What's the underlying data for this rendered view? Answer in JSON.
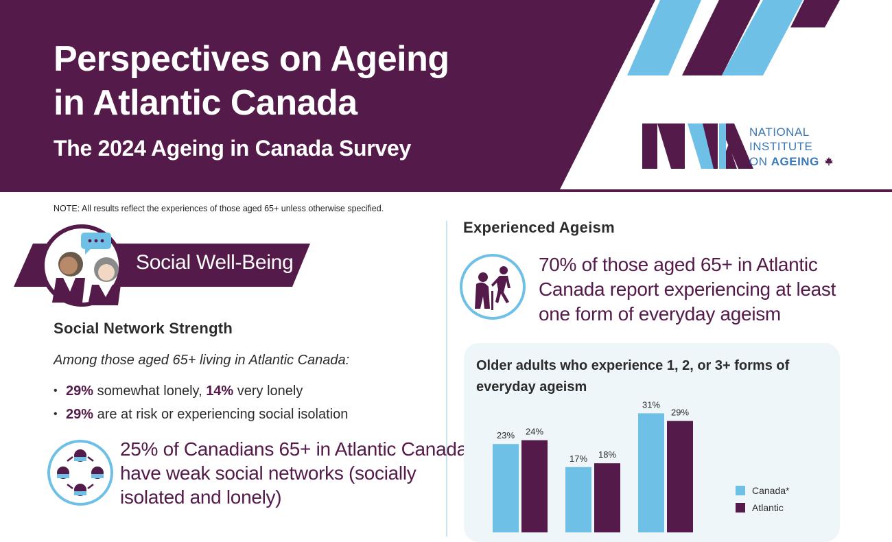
{
  "header": {
    "title_line1": "Perspectives on Ageing",
    "title_line2": "in Atlantic Canada",
    "subtitle": "The 2024 Ageing in Canada Survey",
    "logo_line1": "NATIONAL",
    "logo_line2": "INSTITUTE",
    "logo_line3_prefix": "ON ",
    "logo_line3_bold": "AGEING",
    "logo_icon": "maple-leaf-icon"
  },
  "note": "NOTE: All results reflect the experiences of those aged 65+ unless otherwise specified.",
  "left": {
    "banner_label": "Social Well-Being",
    "banner_icon": "two-people-chat-icon",
    "section_heading": "Social Network Strength",
    "intro": "Among those aged 65+ living in Atlantic Canada:",
    "bullet1": {
      "a_value": "29%",
      "a_text": " somewhat lonely, ",
      "b_value": "14%",
      "b_text": " very lonely"
    },
    "bullet2": {
      "value": "29%",
      "text": " are at risk or experiencing social isolation"
    },
    "callout_line1": "25% of Canadians 65+ in Atlantic Canada",
    "callout_line2": "have weak social networks (socially",
    "callout_line3": "isolated and lonely)",
    "callout_icon": "social-network-cycle-icon"
  },
  "right": {
    "section_heading": "Experienced Ageism",
    "callout_line1": "70% of those aged 65+ in Atlantic",
    "callout_line2": "Canada report experiencing at least",
    "callout_line3": "one form of everyday ageism",
    "callout_icon": "elderly-person-cane-icon"
  },
  "colors": {
    "purple": "#541a4a",
    "light_blue": "#6fc0e6",
    "dark_text": "#2b2b2b",
    "panel_bg": "#eef6fa"
  },
  "chart_data": {
    "type": "bar",
    "title": "Older adults who experience 1, 2, or 3+ forms of everyday ageism",
    "categories": [
      "",
      "",
      ""
    ],
    "series": [
      {
        "name": "Canada*",
        "color": "#6fc0e6",
        "values": [
          23,
          17,
          31
        ],
        "labels": [
          "23%",
          "17%",
          "31%"
        ]
      },
      {
        "name": "Atlantic",
        "color": "#541a4a",
        "values": [
          24,
          18,
          29
        ],
        "labels": [
          "24%",
          "18%",
          "29%"
        ]
      }
    ],
    "ylim": [
      0,
      40
    ],
    "grid": false,
    "legend": "right"
  }
}
